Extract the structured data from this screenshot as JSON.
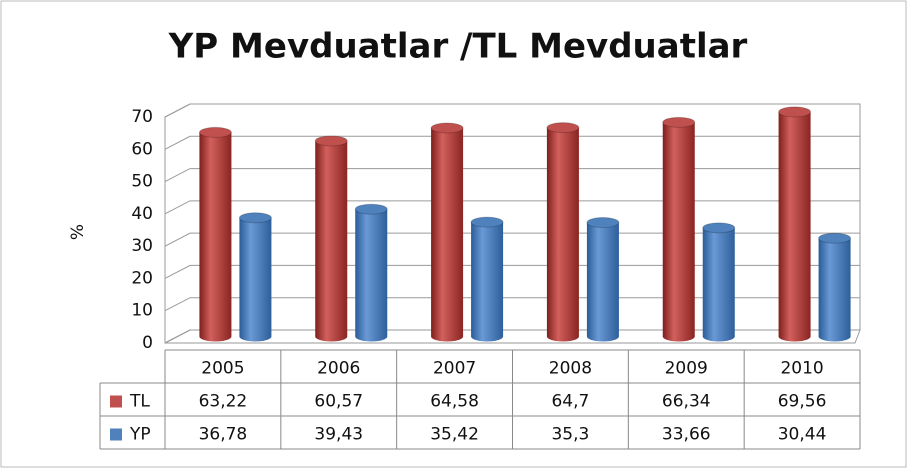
{
  "chart_data": {
    "type": "bar3d",
    "title": "YP Mevduatlar /TL Mevduatlar",
    "y_label": "%",
    "categories": [
      "2005",
      "2006",
      "2007",
      "2008",
      "2009",
      "2010"
    ],
    "series": [
      {
        "name": "TL",
        "color": "#c0504d",
        "values": [
          63.22,
          60.57,
          64.58,
          64.7,
          66.34,
          69.56
        ],
        "value_labels": [
          "63,22",
          "60,57",
          "64,58",
          "64,7",
          "66,34",
          "69,56"
        ]
      },
      {
        "name": "YP",
        "color": "#4f81bd",
        "values": [
          36.78,
          39.43,
          35.42,
          35.3,
          33.66,
          30.44
        ],
        "value_labels": [
          "36,78",
          "39,43",
          "35,42",
          "35,3",
          "33,66",
          "30,44"
        ]
      }
    ],
    "ylim": [
      0,
      70
    ],
    "yticks": [
      0,
      10,
      20,
      30,
      40,
      50,
      60,
      70
    ],
    "grid": true
  }
}
